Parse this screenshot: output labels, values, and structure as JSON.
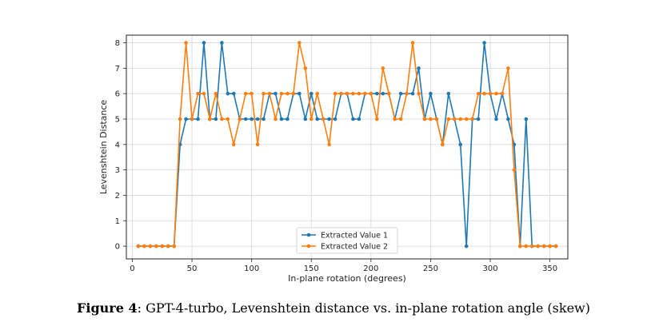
{
  "caption": {
    "label": "Figure 4",
    "text": ": GPT-4-turbo, Levenshtein distance vs. in-plane rotation angle (skew)"
  },
  "chart_data": {
    "type": "line",
    "title": "",
    "xlabel": "In-plane rotation (degrees)",
    "ylabel": "Levenshtein Distance",
    "xlim": [
      -5,
      365
    ],
    "ylim": [
      -0.5,
      8.3
    ],
    "xticks": [
      0,
      50,
      100,
      150,
      200,
      250,
      300,
      350
    ],
    "yticks": [
      0,
      1,
      2,
      3,
      4,
      5,
      6,
      7,
      8
    ],
    "grid": true,
    "legend_position": "bottom-center",
    "x": [
      5,
      10,
      15,
      20,
      25,
      30,
      35,
      40,
      45,
      50,
      55,
      60,
      65,
      70,
      75,
      80,
      85,
      90,
      95,
      100,
      105,
      110,
      115,
      120,
      125,
      130,
      135,
      140,
      145,
      150,
      155,
      160,
      165,
      170,
      175,
      180,
      185,
      190,
      195,
      200,
      205,
      210,
      215,
      220,
      225,
      230,
      235,
      240,
      245,
      250,
      255,
      260,
      265,
      270,
      275,
      280,
      285,
      290,
      295,
      300,
      305,
      310,
      315,
      320,
      325,
      330,
      335,
      340,
      345,
      350,
      355
    ],
    "series": [
      {
        "name": "Extracted Value 1",
        "color": "#1f77b4",
        "values": [
          0,
          0,
          0,
          0,
          0,
          0,
          0,
          4,
          5,
          5,
          5,
          8,
          5,
          5,
          8,
          6,
          6,
          5,
          5,
          5,
          5,
          5,
          6,
          6,
          5,
          5,
          6,
          6,
          5,
          6,
          5,
          5,
          5,
          5,
          6,
          6,
          5,
          5,
          6,
          6,
          6,
          6,
          6,
          5,
          6,
          6,
          6,
          7,
          5,
          6,
          5,
          4,
          6,
          5,
          4,
          0,
          5,
          5,
          8,
          6,
          5,
          6,
          5,
          4,
          0,
          5,
          0,
          0,
          0,
          0,
          0
        ]
      },
      {
        "name": "Extracted Value 2",
        "color": "#ff7f0e",
        "values": [
          0,
          0,
          0,
          0,
          0,
          0,
          0,
          5,
          8,
          5,
          6,
          6,
          5,
          6,
          5,
          5,
          4,
          5,
          6,
          6,
          4,
          6,
          6,
          5,
          6,
          6,
          6,
          8,
          7,
          5,
          6,
          5,
          4,
          6,
          6,
          6,
          6,
          6,
          6,
          6,
          5,
          7,
          6,
          5,
          5,
          6,
          8,
          6,
          5,
          5,
          5,
          4,
          5,
          5,
          5,
          5,
          5,
          6,
          6,
          6,
          6,
          6,
          7,
          3,
          0,
          0,
          0,
          0,
          0,
          0,
          0
        ]
      }
    ]
  }
}
